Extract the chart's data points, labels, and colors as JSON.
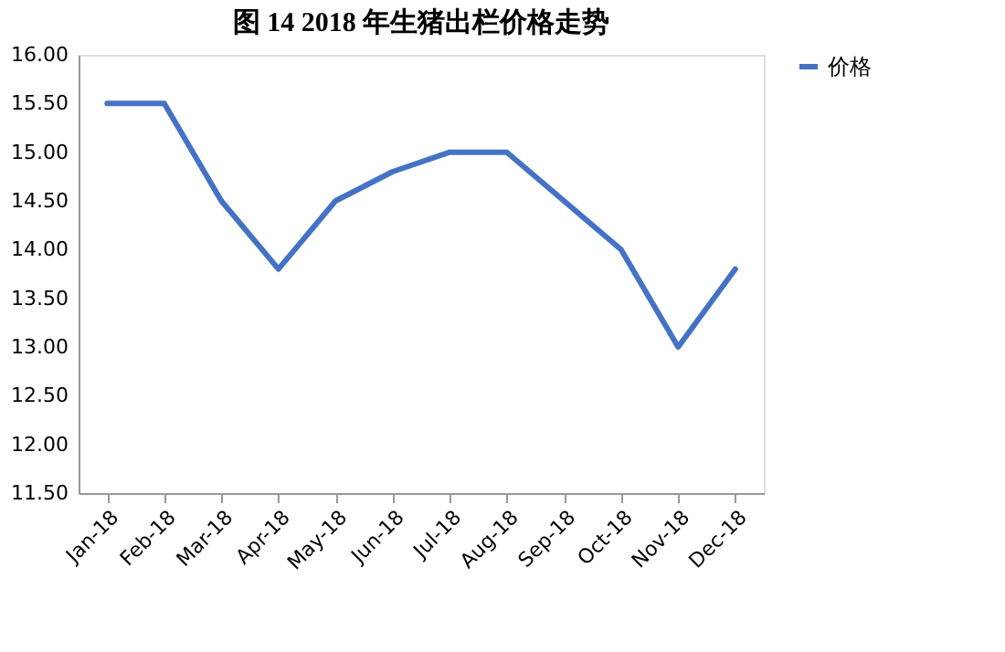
{
  "chart_data": {
    "type": "line",
    "title": "图 14    2018 年生猪出栏价格走势",
    "categories": [
      "Jan-18",
      "Feb-18",
      "Mar-18",
      "Apr-18",
      "May-18",
      "Jun-18",
      "Jul-18",
      "Aug-18",
      "Sep-18",
      "Oct-18",
      "Nov-18",
      "Dec-18"
    ],
    "series": [
      {
        "name": "价格",
        "color": "#4472c4",
        "values": [
          15.5,
          15.5,
          14.5,
          13.8,
          14.5,
          14.8,
          15.0,
          15.0,
          14.5,
          14.0,
          13.0,
          13.8
        ]
      }
    ],
    "ylim": [
      11.5,
      16.0
    ],
    "yticks": [
      {
        "value": 11.5,
        "label": "11.50"
      },
      {
        "value": 12.0,
        "label": "12.00"
      },
      {
        "value": 12.5,
        "label": "12.50"
      },
      {
        "value": 13.0,
        "label": "13.00"
      },
      {
        "value": 13.5,
        "label": "13.50"
      },
      {
        "value": 14.0,
        "label": "14.00"
      },
      {
        "value": 14.5,
        "label": "14.50"
      },
      {
        "value": 15.0,
        "label": "15.00"
      },
      {
        "value": 15.5,
        "label": "15.50"
      },
      {
        "value": 16.0,
        "label": "16.00"
      }
    ],
    "grid": false,
    "legend": "right",
    "marker": "none",
    "line_style": "solid"
  }
}
